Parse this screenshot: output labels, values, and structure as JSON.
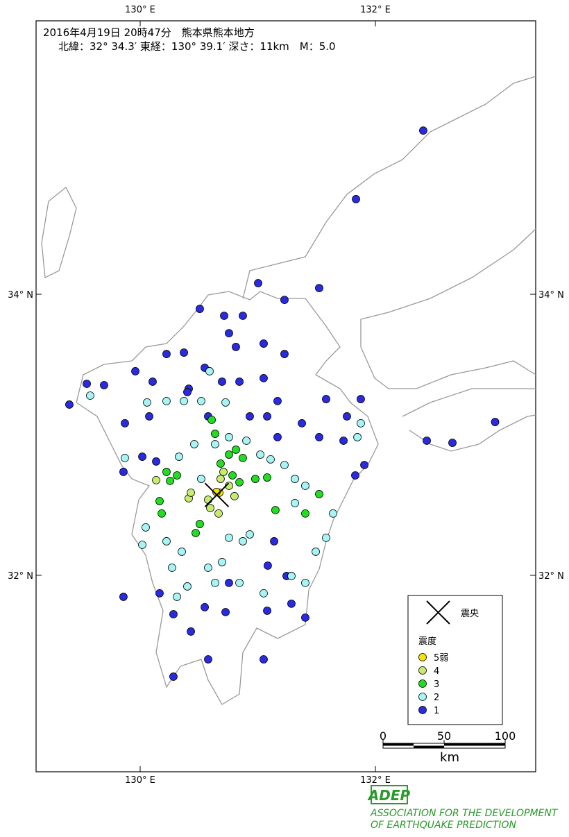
{
  "header": {
    "line1": "2016年4月19日 20時47分　熊本県熊本地方",
    "line2": "北緯：32° 34.3′ 東経：130° 39.1′ 深さ：11km　M：5.0"
  },
  "map": {
    "lon_range": [
      129.115,
      133.363
    ],
    "lat_range": [
      30.602,
      35.946
    ],
    "lon_ticks": [
      {
        "value": 130,
        "label": "130° E"
      },
      {
        "value": 132,
        "label": "132° E"
      }
    ],
    "lat_ticks": [
      {
        "value": 34,
        "label": "34° N"
      },
      {
        "value": 32,
        "label": "32° N"
      }
    ]
  },
  "epicenter": {
    "lon": 130.6517,
    "lat": 32.5717
  },
  "legend": {
    "epicenter_label": "震央",
    "title": "震度",
    "items": [
      {
        "label": "5弱",
        "color": "#f5e500"
      },
      {
        "label": "4",
        "color": "#c5ec6e"
      },
      {
        "label": "3",
        "color": "#22dd22"
      },
      {
        "label": "2",
        "color": "#a6f5f5"
      },
      {
        "label": "1",
        "color": "#2a2ae0"
      }
    ]
  },
  "scale": {
    "ticks": [
      0,
      50,
      100
    ],
    "unit": "km"
  },
  "logo": {
    "mark": "ADEP",
    "line1": "ASSOCIATION FOR THE DEVELOPMENT",
    "line2": "OF EARTHQUAKE PREDICTION"
  },
  "stations": [
    [
      130.649,
      32.593,
      "5弱"
    ],
    [
      130.673,
      32.588,
      "5弱"
    ],
    [
      130.431,
      32.588,
      "4"
    ],
    [
      130.413,
      32.548,
      "4"
    ],
    [
      130.578,
      32.538,
      "4"
    ],
    [
      130.596,
      32.479,
      "4"
    ],
    [
      130.667,
      32.44,
      "4"
    ],
    [
      130.755,
      32.637,
      "4"
    ],
    [
      130.802,
      32.563,
      "4"
    ],
    [
      130.684,
      32.686,
      "4"
    ],
    [
      130.136,
      32.677,
      "4"
    ],
    [
      130.708,
      32.736,
      "4"
    ],
    [
      130.684,
      32.795,
      "3"
    ],
    [
      130.755,
      32.859,
      "3"
    ],
    [
      130.814,
      32.894,
      "3"
    ],
    [
      130.873,
      32.835,
      "3"
    ],
    [
      130.785,
      32.711,
      "3"
    ],
    [
      130.844,
      32.662,
      "3"
    ],
    [
      130.979,
      32.686,
      "3"
    ],
    [
      131.08,
      32.696,
      "3"
    ],
    [
      131.15,
      32.464,
      "3"
    ],
    [
      131.404,
      32.44,
      "3"
    ],
    [
      131.522,
      32.578,
      "3"
    ],
    [
      130.224,
      32.736,
      "3"
    ],
    [
      130.313,
      32.711,
      "3"
    ],
    [
      130.254,
      32.672,
      "3"
    ],
    [
      130.165,
      32.528,
      "3"
    ],
    [
      130.183,
      32.44,
      "3"
    ],
    [
      130.507,
      32.365,
      "3"
    ],
    [
      130.472,
      32.301,
      "3"
    ],
    [
      130.608,
      33.106,
      "3"
    ],
    [
      130.637,
      33.007,
      "3"
    ],
    [
      129.575,
      33.279,
      "2"
    ],
    [
      130.059,
      33.23,
      "2"
    ],
    [
      130.224,
      33.24,
      "2"
    ],
    [
      130.372,
      33.24,
      "2"
    ],
    [
      130.519,
      33.24,
      "2"
    ],
    [
      130.726,
      33.23,
      "2"
    ],
    [
      130.59,
      33.452,
      "2"
    ],
    [
      130.637,
      32.933,
      "2"
    ],
    [
      130.755,
      32.983,
      "2"
    ],
    [
      130.46,
      32.933,
      "2"
    ],
    [
      130.903,
      32.958,
      "2"
    ],
    [
      131.021,
      32.859,
      "2"
    ],
    [
      131.109,
      32.825,
      "2"
    ],
    [
      131.227,
      32.785,
      "2"
    ],
    [
      131.316,
      32.686,
      "2"
    ],
    [
      131.404,
      32.637,
      "2"
    ],
    [
      131.316,
      32.514,
      "2"
    ],
    [
      130.873,
      32.242,
      "2"
    ],
    [
      130.755,
      32.267,
      "2"
    ],
    [
      130.932,
      32.291,
      "2"
    ],
    [
      130.696,
      32.094,
      "2"
    ],
    [
      130.578,
      32.054,
      "2"
    ],
    [
      130.354,
      32.168,
      "2"
    ],
    [
      130.224,
      32.242,
      "2"
    ],
    [
      130.047,
      32.341,
      "2"
    ],
    [
      130.018,
      32.217,
      "2"
    ],
    [
      130.271,
      32.054,
      "2"
    ],
    [
      130.313,
      31.847,
      "2"
    ],
    [
      130.401,
      31.921,
      "2"
    ],
    [
      130.637,
      31.946,
      "2"
    ],
    [
      130.844,
      31.946,
      "2"
    ],
    [
      131.05,
      31.872,
      "2"
    ],
    [
      131.286,
      31.995,
      "2"
    ],
    [
      131.404,
      31.946,
      "2"
    ],
    [
      131.493,
      32.168,
      "2"
    ],
    [
      131.581,
      32.267,
      "2"
    ],
    [
      131.64,
      32.44,
      "2"
    ],
    [
      131.876,
      33.082,
      "2"
    ],
    [
      131.847,
      32.983,
      "2"
    ],
    [
      129.87,
      32.835,
      "2"
    ],
    [
      130.33,
      32.844,
      "2"
    ],
    [
      130.519,
      32.686,
      "2"
    ],
    [
      132.407,
      35.165,
      "1"
    ],
    [
      131.835,
      34.677,
      "1"
    ],
    [
      131.003,
      34.079,
      "1"
    ],
    [
      131.522,
      34.044,
      "1"
    ],
    [
      131.227,
      33.96,
      "1"
    ],
    [
      130.507,
      33.896,
      "1"
    ],
    [
      130.714,
      33.847,
      "1"
    ],
    [
      130.873,
      33.847,
      "1"
    ],
    [
      130.755,
      33.723,
      "1"
    ],
    [
      130.814,
      33.625,
      "1"
    ],
    [
      131.05,
      33.649,
      "1"
    ],
    [
      131.227,
      33.575,
      "1"
    ],
    [
      130.224,
      33.575,
      "1"
    ],
    [
      130.372,
      33.585,
      "1"
    ],
    [
      130.549,
      33.477,
      "1"
    ],
    [
      129.959,
      33.452,
      "1"
    ],
    [
      129.546,
      33.363,
      "1"
    ],
    [
      129.398,
      33.215,
      "1"
    ],
    [
      129.693,
      33.353,
      "1"
    ],
    [
      130.106,
      33.378,
      "1"
    ],
    [
      130.401,
      33.304,
      "1"
    ],
    [
      130.696,
      33.378,
      "1"
    ],
    [
      130.844,
      33.378,
      "1"
    ],
    [
      131.05,
      33.403,
      "1"
    ],
    [
      131.168,
      33.24,
      "1"
    ],
    [
      131.581,
      33.254,
      "1"
    ],
    [
      131.876,
      33.254,
      "1"
    ],
    [
      131.758,
      33.131,
      "1"
    ],
    [
      130.932,
      33.131,
      "1"
    ],
    [
      131.08,
      33.131,
      "1"
    ],
    [
      131.375,
      33.082,
      "1"
    ],
    [
      131.522,
      32.983,
      "1"
    ],
    [
      131.729,
      32.958,
      "1"
    ],
    [
      131.906,
      32.785,
      "1"
    ],
    [
      131.829,
      32.711,
      "1"
    ],
    [
      133.018,
      33.091,
      "1"
    ],
    [
      132.655,
      32.943,
      "1"
    ],
    [
      132.437,
      32.958,
      "1"
    ],
    [
      131.168,
      32.983,
      "1"
    ],
    [
      129.87,
      33.082,
      "1"
    ],
    [
      130.077,
      33.131,
      "1"
    ],
    [
      130.018,
      32.844,
      "1"
    ],
    [
      130.136,
      32.81,
      "1"
    ],
    [
      129.858,
      32.736,
      "1"
    ],
    [
      129.858,
      31.847,
      "1"
    ],
    [
      130.283,
      31.723,
      "1"
    ],
    [
      130.431,
      31.6,
      "1"
    ],
    [
      130.549,
      31.773,
      "1"
    ],
    [
      130.726,
      31.738,
      "1"
    ],
    [
      131.08,
      31.748,
      "1"
    ],
    [
      131.286,
      31.798,
      "1"
    ],
    [
      131.404,
      31.699,
      "1"
    ],
    [
      131.245,
      31.995,
      "1"
    ],
    [
      131.085,
      32.069,
      "1"
    ],
    [
      131.139,
      32.242,
      "1"
    ],
    [
      130.578,
      31.402,
      "1"
    ],
    [
      130.283,
      31.279,
      "1"
    ],
    [
      131.05,
      31.402,
      "1"
    ],
    [
      130.165,
      31.872,
      "1"
    ],
    [
      130.755,
      31.946,
      "1"
    ],
    [
      130.413,
      33.328,
      "1"
    ],
    [
      130.578,
      33.131,
      "1"
    ]
  ]
}
